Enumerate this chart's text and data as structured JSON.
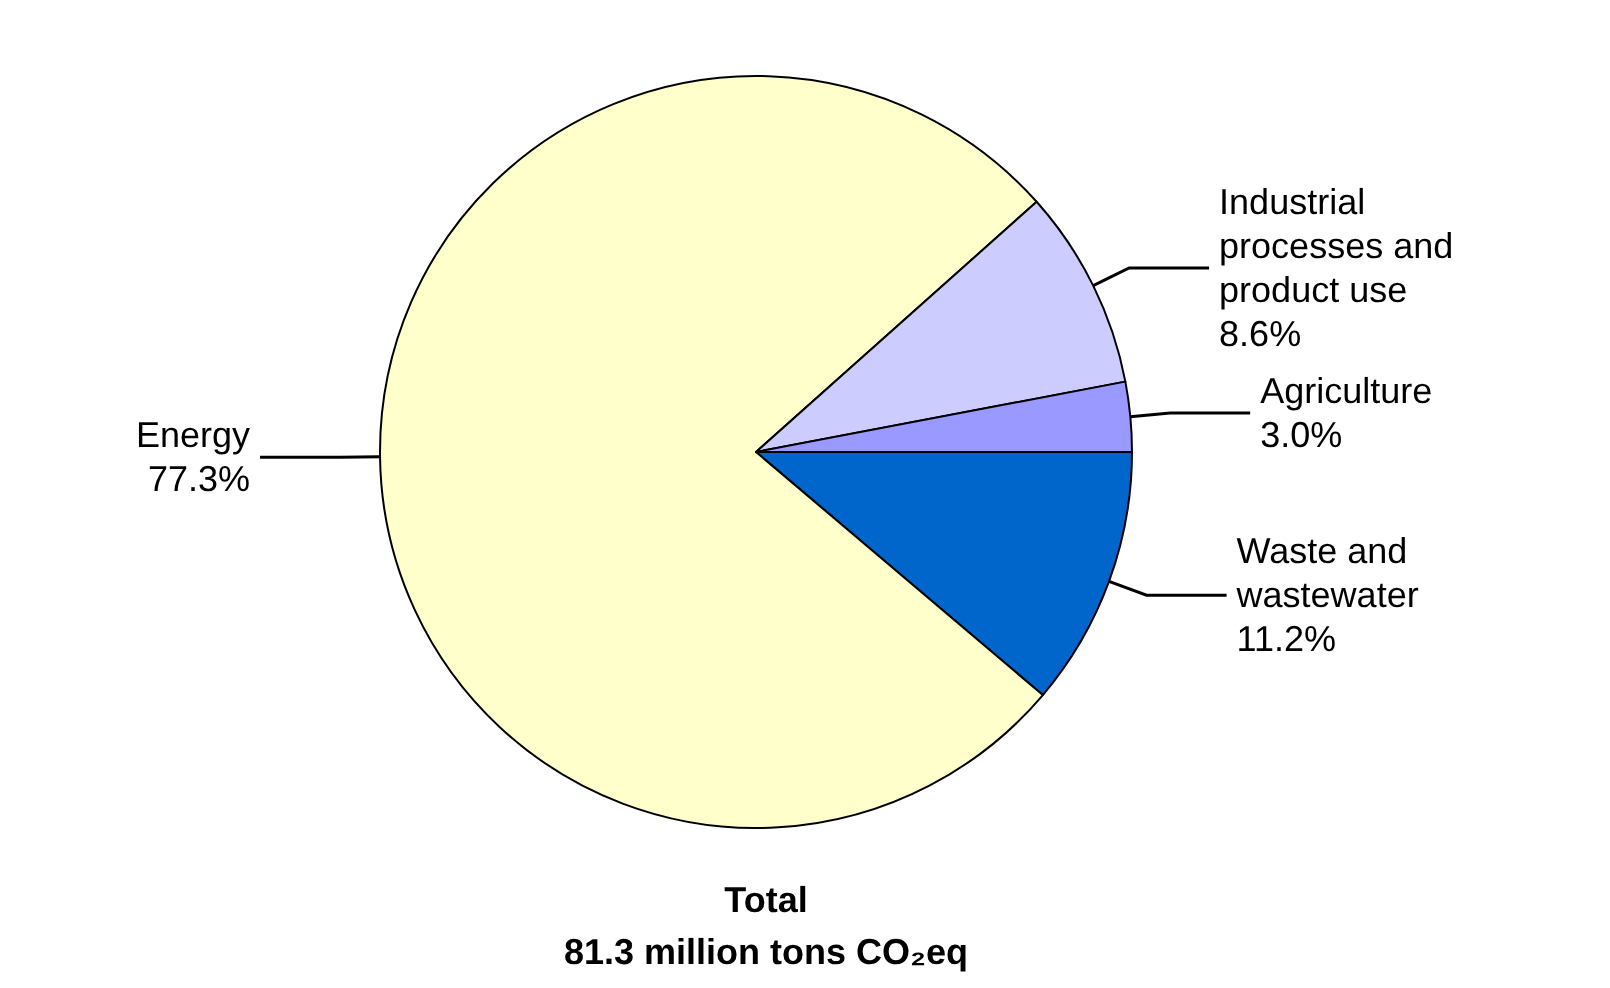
{
  "chart_data": {
    "type": "pie",
    "title": "Total\n81.3 million tons CO₂eq",
    "categories": [
      "Waste and wastewater",
      "Energy",
      "Industrial processes and product use",
      "Agriculture"
    ],
    "values": [
      11.2,
      77.3,
      8.6,
      3.0
    ],
    "colors": [
      "#0066cc",
      "#ffffcc",
      "#ccccff",
      "#9999ff"
    ],
    "value_labels": [
      "11.2%",
      "77.3%",
      "8.6%",
      "3.0%"
    ],
    "legend": false
  }
}
